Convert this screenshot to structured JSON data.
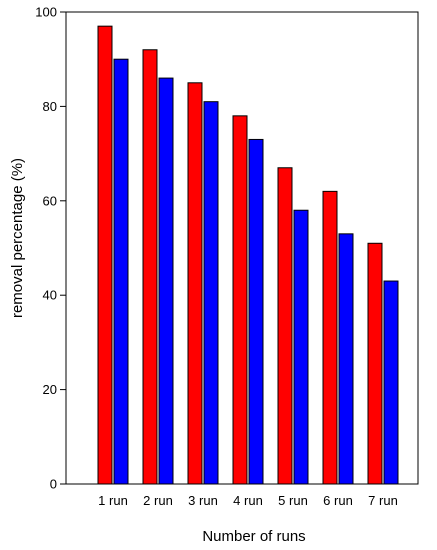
{
  "chart_data": {
    "type": "bar",
    "title": "",
    "xlabel": "Number of runs",
    "ylabel": "removal percentage (%)",
    "categories": [
      "1 run",
      "2 run",
      "3 run",
      "4 run",
      "5 run",
      "6 run",
      "7 run"
    ],
    "ylim": [
      0,
      100
    ],
    "yticks": [
      0,
      20,
      40,
      60,
      80,
      100
    ],
    "grid": false,
    "legend": "none",
    "series": [
      {
        "color": "#ff0000",
        "values": [
          97,
          92,
          85,
          78,
          67,
          62,
          51
        ]
      },
      {
        "color": "#0000ff",
        "values": [
          90,
          86,
          81,
          73,
          58,
          53,
          43
        ]
      }
    ]
  }
}
